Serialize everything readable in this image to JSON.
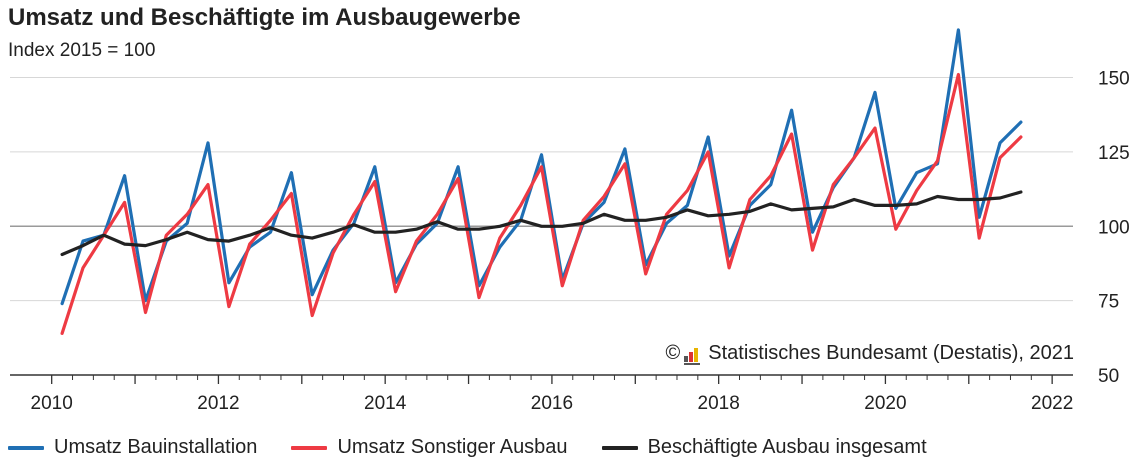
{
  "title": "Umsatz und Beschäftigte im Ausbaugewerbe",
  "subtitle": "Index 2015 = 100",
  "credit": {
    "copyright_symbol": "©",
    "text": "Statistisches Bundesamt (Destatis), 2021",
    "logo_icon": "destatis-logo-icon"
  },
  "chart_data": {
    "type": "line",
    "title": "Umsatz und Beschäftigte im Ausbaugewerbe",
    "subtitle": "Index 2015 = 100",
    "xlim": [
      2009.5,
      2022.25
    ],
    "ylim": [
      50,
      170
    ],
    "x_ticks": [
      2010,
      2012,
      2014,
      2016,
      2018,
      2020,
      2022
    ],
    "y_ticks": [
      50,
      75,
      100,
      125,
      150
    ],
    "reference_line": 100,
    "grid": "horizontal",
    "legend_position": "bottom",
    "x": [
      2010.125,
      2010.375,
      2010.625,
      2010.875,
      2011.125,
      2011.375,
      2011.625,
      2011.875,
      2012.125,
      2012.375,
      2012.625,
      2012.875,
      2013.125,
      2013.375,
      2013.625,
      2013.875,
      2014.125,
      2014.375,
      2014.625,
      2014.875,
      2015.125,
      2015.375,
      2015.625,
      2015.875,
      2016.125,
      2016.375,
      2016.625,
      2016.875,
      2017.125,
      2017.375,
      2017.625,
      2017.875,
      2018.125,
      2018.375,
      2018.625,
      2018.875,
      2019.125,
      2019.375,
      2019.625,
      2019.875,
      2020.125,
      2020.375,
      2020.625,
      2020.875,
      2021.125,
      2021.375,
      2021.625
    ],
    "series": [
      {
        "name": "Umsatz Bauinstallation",
        "color": "#1f6fb4",
        "values": [
          74,
          95,
          97,
          117,
          75,
          95,
          101,
          128,
          81,
          93,
          98,
          118,
          77,
          92,
          101,
          120,
          81,
          94,
          101,
          120,
          80,
          93,
          102,
          124,
          82,
          101,
          108,
          126,
          87,
          101,
          107,
          130,
          90,
          107,
          114,
          139,
          98,
          113,
          123,
          145,
          106,
          118,
          121,
          166,
          103,
          128,
          135
        ]
      },
      {
        "name": "Umsatz Sonstiger Ausbau",
        "color": "#ee3a43",
        "values": [
          64,
          86,
          97,
          108,
          71,
          97,
          104,
          114,
          73,
          94,
          102,
          111,
          70,
          91,
          104,
          115,
          78,
          95,
          104,
          116,
          76,
          96,
          107,
          120,
          80,
          102,
          110,
          121,
          84,
          104,
          112,
          125,
          86,
          109,
          117,
          131,
          92,
          114,
          123,
          133,
          99,
          112,
          122,
          151,
          96,
          123,
          130
        ]
      },
      {
        "name": "Beschäftigte Ausbau insgesamt",
        "color": "#222222",
        "values": [
          90.5,
          93.5,
          97,
          94,
          93.5,
          95.5,
          98,
          95.5,
          95,
          97,
          99.5,
          97,
          96,
          98,
          100.5,
          98,
          98,
          99,
          101.5,
          99,
          99,
          100,
          102,
          100,
          100,
          101,
          104,
          102,
          102,
          103,
          105.5,
          103.5,
          104,
          105,
          107.5,
          105.5,
          106,
          106.5,
          109,
          107,
          107,
          107.5,
          110,
          109,
          109,
          109.5,
          111.5
        ]
      }
    ]
  }
}
